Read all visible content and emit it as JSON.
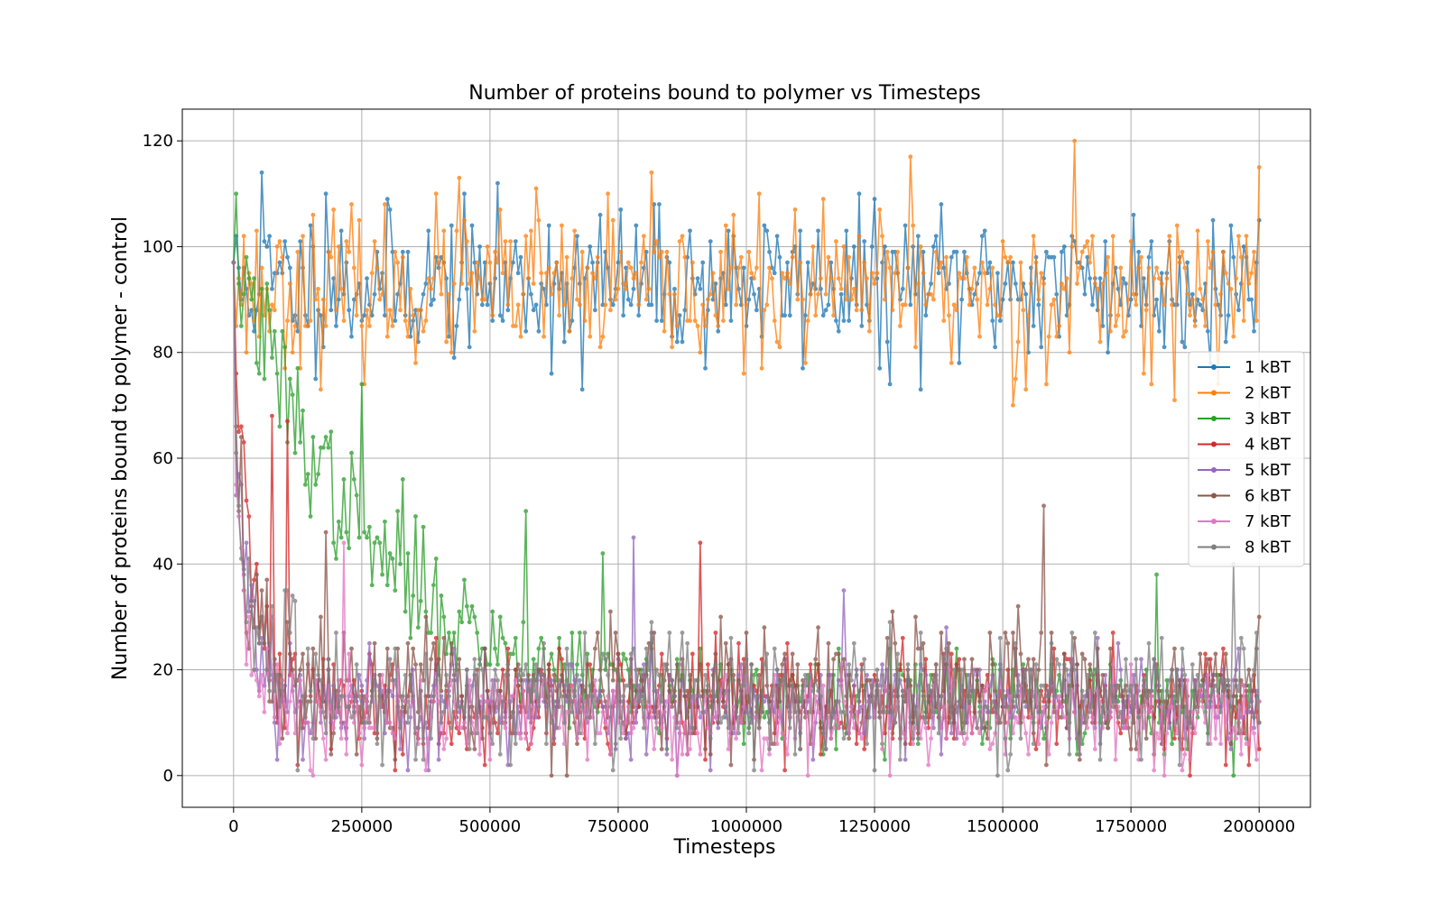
{
  "chart_data": {
    "type": "line",
    "title": "Number of proteins bound to polymer vs Timesteps",
    "xlabel": "Timesteps",
    "ylabel": "Number of proteins bound to polymer - control",
    "xlim": [
      -100000,
      2100000
    ],
    "ylim": [
      -6,
      126
    ],
    "xticks": [
      0,
      250000,
      500000,
      750000,
      1000000,
      1250000,
      1500000,
      1750000,
      2000000
    ],
    "yticks": [
      0,
      20,
      40,
      60,
      80,
      100,
      120
    ],
    "grid": true,
    "legend_position": "center-right",
    "x_step": 5000,
    "series": [
      {
        "name": "1 kBT",
        "color": "#1f77b4",
        "start": 97,
        "end": 105,
        "model": "flat",
        "level": 93,
        "noise": 7,
        "seed": 11,
        "anchors": [
          [
            55000,
            114
          ],
          [
            180000,
            110
          ],
          [
            680000,
            116
          ],
          [
            1280000,
            74
          ],
          [
            680000,
            73
          ]
        ]
      },
      {
        "name": "2 kBT",
        "color": "#ff7f0e",
        "start": 97,
        "end": 115,
        "model": "flat",
        "level": 92,
        "noise": 7,
        "seed": 23,
        "anchors": [
          [
            1640000,
            120
          ],
          [
            1320000,
            117
          ],
          [
            1520000,
            70
          ],
          [
            440000,
            113
          ],
          [
            590000,
            111
          ]
        ]
      },
      {
        "name": "3 kBT",
        "color": "#2ca02c",
        "start": 97,
        "end": 10,
        "model": "slow",
        "level": 13,
        "amp": 87,
        "tau": 260000,
        "noise": 4,
        "seed": 37,
        "anchors": [
          [
            250000,
            74
          ],
          [
            330000,
            56
          ],
          [
            570000,
            50
          ],
          [
            720000,
            42
          ],
          [
            1800000,
            38
          ]
        ]
      },
      {
        "name": "4 kBT",
        "color": "#d62728",
        "start": 97,
        "end": 5,
        "model": "fast",
        "level": 14,
        "amp": 70,
        "tau": 35000,
        "noise": 5,
        "seed": 41,
        "anchors": [
          [
            75000,
            68
          ],
          [
            105000,
            67
          ],
          [
            910000,
            44
          ],
          [
            330000,
            4
          ]
        ]
      },
      {
        "name": "5 kBT",
        "color": "#9467bd",
        "start": 97,
        "end": 14,
        "model": "fast",
        "level": 14,
        "amp": 60,
        "tau": 30000,
        "noise": 5,
        "seed": 53,
        "anchors": [
          [
            780000,
            45
          ],
          [
            1190000,
            35
          ],
          [
            380000,
            1
          ]
        ]
      },
      {
        "name": "6 kBT",
        "color": "#8c564b",
        "start": 97,
        "end": 30,
        "model": "fast",
        "level": 15,
        "amp": 55,
        "tau": 30000,
        "noise": 6,
        "seed": 67,
        "anchors": [
          [
            1580000,
            51
          ],
          [
            620000,
            0
          ],
          [
            180000,
            46
          ]
        ]
      },
      {
        "name": "7 kBT",
        "color": "#e377c2",
        "start": 97,
        "end": 14,
        "model": "fast",
        "level": 11,
        "amp": 55,
        "tau": 30000,
        "noise": 5,
        "seed": 71,
        "anchors": [
          [
            215000,
            44
          ],
          [
            1280000,
            0
          ]
        ]
      },
      {
        "name": "8 kBT",
        "color": "#7f7f7f",
        "start": 97,
        "end": 10,
        "model": "fast",
        "level": 15,
        "amp": 55,
        "tau": 30000,
        "noise": 6,
        "seed": 83,
        "anchors": [
          [
            1950000,
            40
          ],
          [
            1490000,
            0
          ]
        ]
      }
    ]
  }
}
